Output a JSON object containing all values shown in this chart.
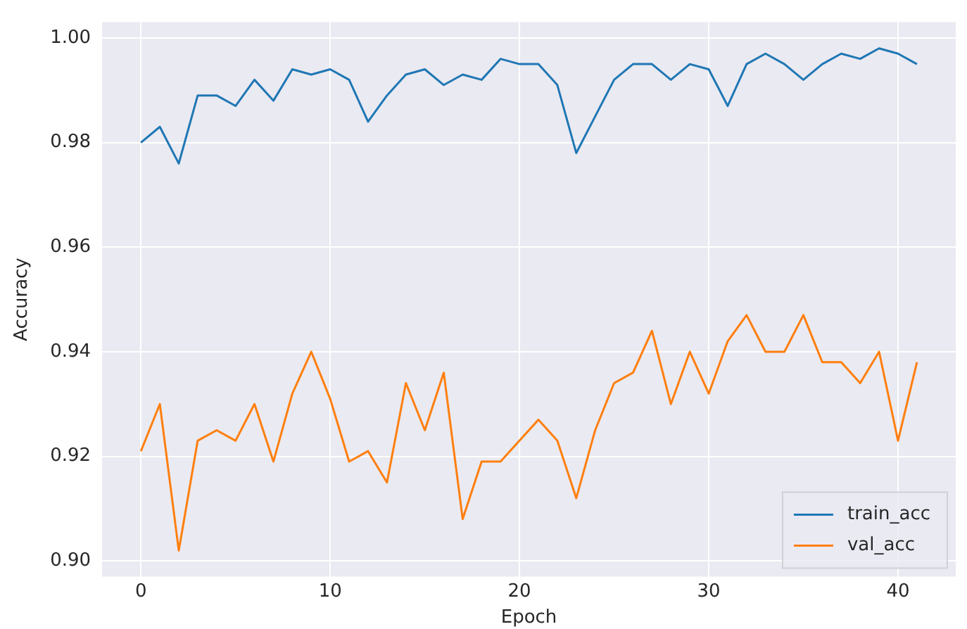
{
  "chart_data": {
    "type": "line",
    "xlabel": "Epoch",
    "ylabel": "Accuracy",
    "xlim": [
      -2.05,
      43.05
    ],
    "ylim": [
      0.897,
      1.003
    ],
    "xticks": [
      0,
      10,
      20,
      30,
      40
    ],
    "yticks": [
      {
        "value": 0.9,
        "label": "0.90"
      },
      {
        "value": 0.92,
        "label": "0.92"
      },
      {
        "value": 0.94,
        "label": "0.94"
      },
      {
        "value": 0.96,
        "label": "0.96"
      },
      {
        "value": 0.98,
        "label": "0.98"
      },
      {
        "value": 1.0,
        "label": "1.00"
      }
    ],
    "grid": true,
    "legend": "bottom right",
    "marker": "none",
    "line_style": "solid",
    "x": [
      0,
      1,
      2,
      3,
      4,
      5,
      6,
      7,
      8,
      9,
      10,
      11,
      12,
      13,
      14,
      15,
      16,
      17,
      18,
      19,
      20,
      21,
      22,
      23,
      24,
      25,
      26,
      27,
      28,
      29,
      30,
      31,
      32,
      33,
      34,
      35,
      36,
      37,
      38,
      39,
      40,
      41
    ],
    "series": [
      {
        "name": "train_acc",
        "color": "#1f77b4",
        "values": [
          0.98,
          0.983,
          0.976,
          0.989,
          0.989,
          0.987,
          0.992,
          0.988,
          0.994,
          0.993,
          0.994,
          0.992,
          0.984,
          0.989,
          0.993,
          0.994,
          0.991,
          0.993,
          0.992,
          0.996,
          0.995,
          0.995,
          0.991,
          0.978,
          0.985,
          0.992,
          0.995,
          0.995,
          0.992,
          0.995,
          0.994,
          0.987,
          0.995,
          0.997,
          0.995,
          0.992,
          0.995,
          0.997,
          0.996,
          0.998,
          0.997,
          0.995
        ]
      },
      {
        "name": "val_acc",
        "color": "#ff7f0e",
        "values": [
          0.921,
          0.93,
          0.902,
          0.923,
          0.925,
          0.923,
          0.93,
          0.919,
          0.932,
          0.94,
          0.931,
          0.919,
          0.921,
          0.915,
          0.934,
          0.925,
          0.936,
          0.908,
          0.919,
          0.919,
          0.923,
          0.927,
          0.923,
          0.912,
          0.925,
          0.934,
          0.936,
          0.944,
          0.93,
          0.94,
          0.932,
          0.942,
          0.947,
          0.94,
          0.94,
          0.947,
          0.938,
          0.938,
          0.934,
          0.94,
          0.923,
          0.938
        ]
      }
    ]
  }
}
